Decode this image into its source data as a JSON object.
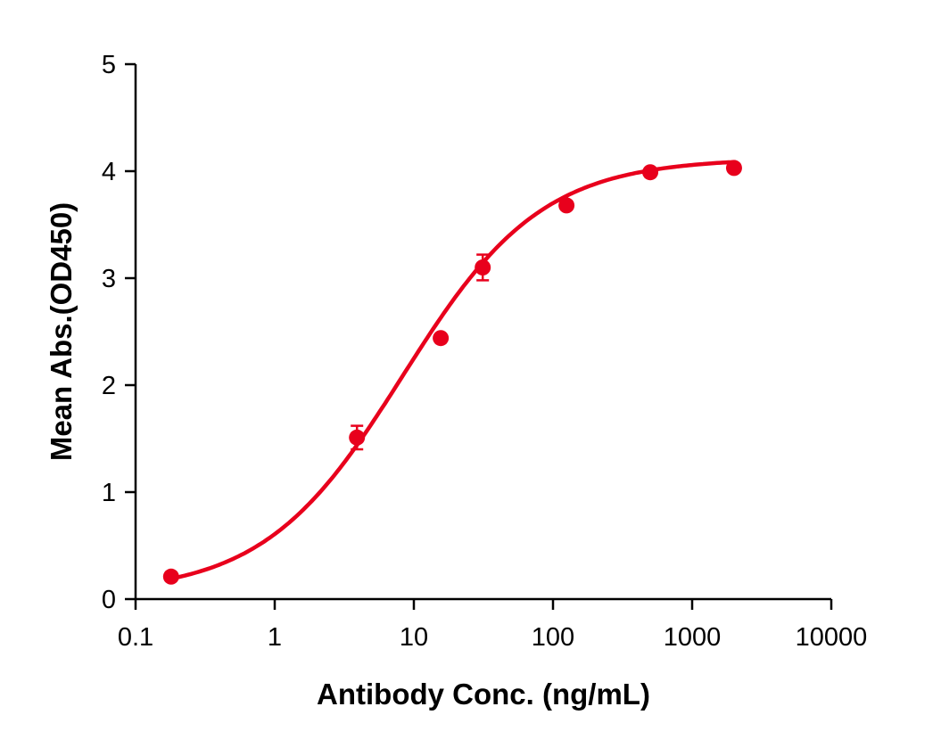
{
  "chart_data": {
    "type": "scatter",
    "title": "",
    "xlabel": "Antibody Conc. (ng/mL)",
    "ylabel": "Mean Abs.(OD450)",
    "xscale": "log",
    "xlim": [
      0.1,
      10000
    ],
    "ylim": [
      0,
      5
    ],
    "xticks": [
      "0.1",
      "1",
      "10",
      "100",
      "1000",
      "10000"
    ],
    "yticks": [
      "0",
      "1",
      "2",
      "3",
      "4",
      "5"
    ],
    "grid": false,
    "legend": "none",
    "color": "#e8001c",
    "fit_curve": "sigmoidal (4PL) fit line",
    "series": [
      {
        "x": [
          0.18,
          3.9,
          15.6,
          31.25,
          125,
          500,
          2000
        ],
        "y": [
          0.21,
          1.51,
          2.44,
          3.1,
          3.68,
          3.99,
          4.03
        ],
        "error": [
          0,
          0.11,
          0,
          0.12,
          0,
          0,
          0
        ]
      }
    ]
  }
}
